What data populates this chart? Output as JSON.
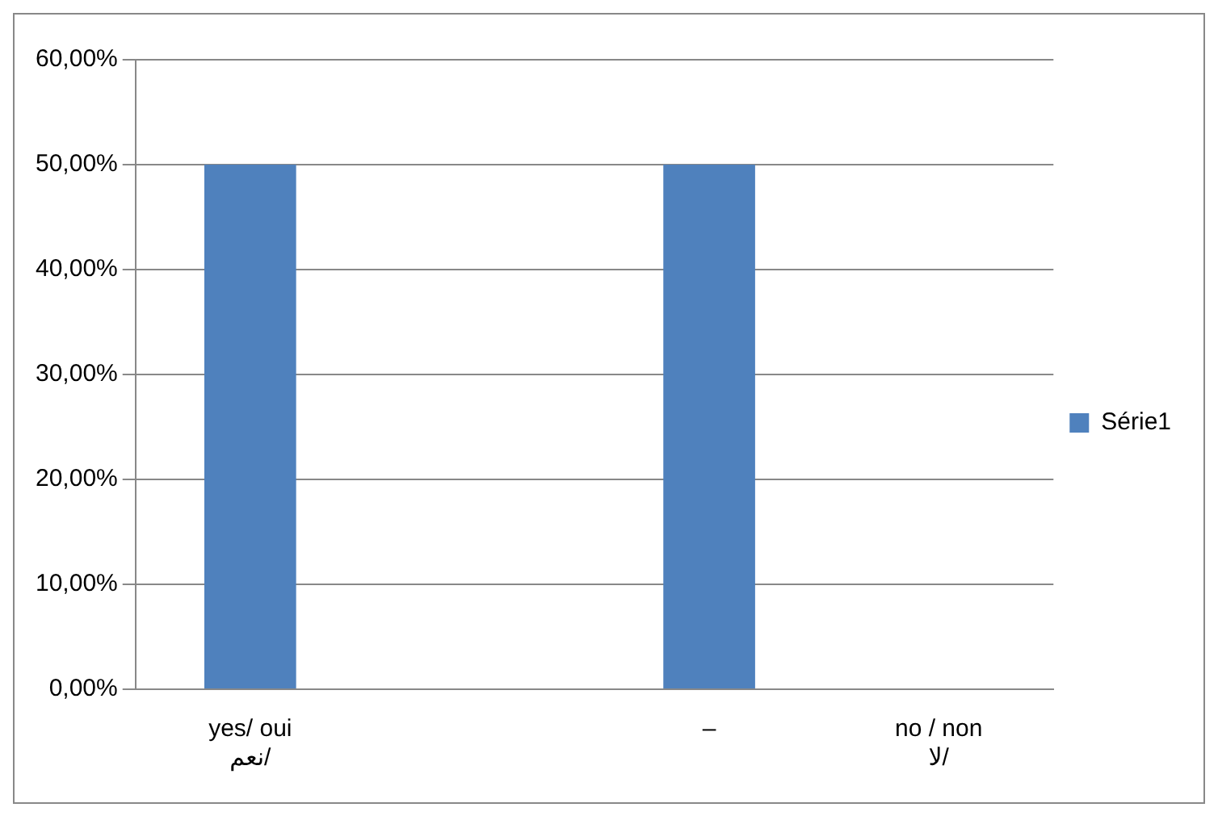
{
  "chart_data": {
    "type": "bar",
    "categories": [
      "yes/ oui\nنعم/",
      null,
      "–",
      "no / non\nلا/"
    ],
    "series": [
      {
        "name": "Série1",
        "color": "#4f81bd",
        "values": [
          50,
          0,
          50,
          0
        ]
      }
    ],
    "ylim": [
      0,
      60
    ],
    "yticks": [
      {
        "value": 0,
        "label": "0,00%"
      },
      {
        "value": 10,
        "label": "10,00%"
      },
      {
        "value": 20,
        "label": "20,00%"
      },
      {
        "value": 30,
        "label": "30,00%"
      },
      {
        "value": 40,
        "label": "40,00%"
      },
      {
        "value": 50,
        "label": "50,00%"
      },
      {
        "value": 60,
        "label": "60,00%"
      }
    ],
    "grid": "y",
    "legend": "right"
  }
}
